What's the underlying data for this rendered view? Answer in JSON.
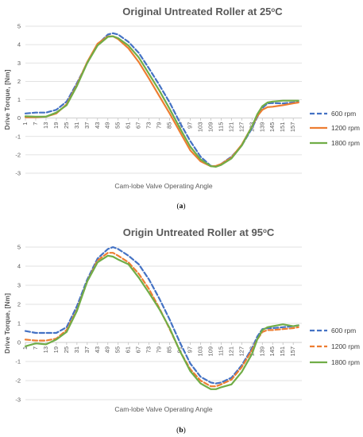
{
  "chart_data": [
    {
      "id": "a",
      "type": "line",
      "title_main": "Original Untreated Roller at 25",
      "title_sup": "o",
      "title_unit": "C",
      "caption_open": "(",
      "caption_letter": "a",
      "caption_close": ")",
      "xlabel": "Cam-lobe Valve Operating Angle",
      "ylabel": "Drive Torque, [Nm]",
      "ylim": [
        -3,
        5
      ],
      "yticks": [
        5,
        4,
        3,
        2,
        1,
        0,
        -1,
        -2,
        -3
      ],
      "x_tick_labels": [
        "1",
        "7",
        "13",
        "19",
        "25",
        "31",
        "37",
        "43",
        "49",
        "55",
        "61",
        "67",
        "73",
        "79",
        "85",
        "91",
        "97",
        "103",
        "109",
        "115",
        "121",
        "127",
        "133",
        "139",
        "145",
        "151",
        "157"
      ],
      "x_range": [
        1,
        162
      ],
      "legend_position": "right",
      "grid": true,
      "series": [
        {
          "name": "600 rpm",
          "color": "#4472c4",
          "dash": true,
          "x": [
            1,
            7,
            13,
            19,
            25,
            31,
            37,
            43,
            49,
            52,
            55,
            61,
            67,
            73,
            79,
            85,
            91,
            97,
            103,
            109,
            112,
            115,
            121,
            127,
            133,
            136,
            139,
            142,
            145,
            151,
            157,
            160
          ],
          "y": [
            0.25,
            0.3,
            0.3,
            0.45,
            0.9,
            1.9,
            3.0,
            4.0,
            4.55,
            4.62,
            4.55,
            4.15,
            3.55,
            2.7,
            1.8,
            0.85,
            -0.25,
            -1.25,
            -2.1,
            -2.6,
            -2.62,
            -2.5,
            -2.1,
            -1.5,
            -0.55,
            0.05,
            0.55,
            0.8,
            0.82,
            0.8,
            0.85,
            0.88
          ]
        },
        {
          "name": "1200 rpm",
          "color": "#ed7d31",
          "dash": false,
          "x": [
            1,
            7,
            13,
            19,
            25,
            31,
            37,
            43,
            49,
            52,
            55,
            61,
            67,
            73,
            79,
            85,
            91,
            97,
            103,
            109,
            112,
            115,
            121,
            127,
            133,
            136,
            139,
            142,
            145,
            151,
            157,
            160
          ],
          "y": [
            0.05,
            0.05,
            0.08,
            0.25,
            0.75,
            1.8,
            3.05,
            4.05,
            4.45,
            4.45,
            4.3,
            3.8,
            3.05,
            2.15,
            1.2,
            0.25,
            -0.75,
            -1.75,
            -2.35,
            -2.62,
            -2.6,
            -2.5,
            -2.15,
            -1.45,
            -0.45,
            0.1,
            0.45,
            0.6,
            0.62,
            0.7,
            0.8,
            0.85
          ]
        },
        {
          "name": "1800 rpm",
          "color": "#70ad47",
          "dash": false,
          "x": [
            1,
            7,
            13,
            19,
            25,
            31,
            37,
            43,
            49,
            52,
            55,
            61,
            67,
            73,
            79,
            85,
            91,
            97,
            103,
            109,
            112,
            115,
            121,
            127,
            133,
            136,
            139,
            142,
            145,
            151,
            157,
            160
          ],
          "y": [
            0.1,
            0.08,
            0.08,
            0.3,
            0.7,
            1.75,
            3.0,
            3.95,
            4.42,
            4.45,
            4.35,
            3.95,
            3.3,
            2.4,
            1.5,
            0.5,
            -0.55,
            -1.55,
            -2.25,
            -2.62,
            -2.65,
            -2.55,
            -2.2,
            -1.5,
            -0.45,
            0.2,
            0.65,
            0.85,
            0.9,
            0.95,
            0.95,
            0.95
          ]
        }
      ]
    },
    {
      "id": "b",
      "type": "line",
      "title_main": "Origin Untreated Roller at 95",
      "title_sup": "o",
      "title_unit": "C",
      "caption_open": "(",
      "caption_letter": "b",
      "caption_close": ")",
      "xlabel": "Cam-lobe Valve Operating Angle",
      "ylabel": "Drive Torque, [Nm]",
      "ylim": [
        -3,
        5
      ],
      "yticks": [
        5,
        4,
        3,
        2,
        1,
        0,
        -1,
        -2,
        -3
      ],
      "x_tick_labels": [
        "1",
        "7",
        "13",
        "19",
        "25",
        "31",
        "37",
        "43",
        "49",
        "55",
        "61",
        "67",
        "73",
        "79",
        "85",
        "91",
        "97",
        "103",
        "109",
        "115",
        "121",
        "127",
        "133",
        "139",
        "145",
        "151",
        "157"
      ],
      "x_range": [
        1,
        162
      ],
      "legend_position": "right",
      "grid": true,
      "series": [
        {
          "name": "600 rpm",
          "color": "#4472c4",
          "dash": true,
          "x": [
            1,
            7,
            13,
            19,
            25,
            31,
            37,
            43,
            49,
            52,
            55,
            61,
            67,
            73,
            79,
            85,
            91,
            97,
            103,
            109,
            112,
            115,
            121,
            127,
            133,
            136,
            139,
            142,
            145,
            151,
            157,
            160
          ],
          "y": [
            0.6,
            0.5,
            0.5,
            0.5,
            0.8,
            1.9,
            3.3,
            4.4,
            4.9,
            5.0,
            4.9,
            4.55,
            4.1,
            3.3,
            2.3,
            1.2,
            0.0,
            -1.1,
            -1.8,
            -2.1,
            -2.15,
            -2.1,
            -1.85,
            -1.2,
            -0.3,
            0.3,
            0.7,
            0.75,
            0.75,
            0.8,
            0.85,
            0.9
          ]
        },
        {
          "name": "1200 rpm",
          "color": "#ed7d31",
          "dash": true,
          "x": [
            1,
            7,
            13,
            19,
            25,
            31,
            37,
            43,
            49,
            52,
            55,
            61,
            67,
            73,
            79,
            85,
            91,
            97,
            103,
            109,
            112,
            115,
            121,
            127,
            133,
            136,
            139,
            142,
            145,
            151,
            157,
            160
          ],
          "y": [
            0.15,
            0.1,
            0.1,
            0.2,
            0.65,
            1.7,
            3.2,
            4.3,
            4.7,
            4.7,
            4.55,
            4.2,
            3.6,
            2.8,
            1.8,
            0.7,
            -0.45,
            -1.4,
            -2.0,
            -2.3,
            -2.3,
            -2.2,
            -1.95,
            -1.3,
            -0.4,
            0.15,
            0.55,
            0.65,
            0.65,
            0.7,
            0.75,
            0.8
          ]
        },
        {
          "name": "1800 rpm",
          "color": "#70ad47",
          "dash": false,
          "x": [
            1,
            7,
            13,
            19,
            25,
            31,
            37,
            43,
            49,
            52,
            55,
            61,
            67,
            73,
            79,
            85,
            91,
            97,
            103,
            109,
            112,
            115,
            121,
            127,
            133,
            136,
            139,
            142,
            145,
            151,
            157,
            160
          ],
          "y": [
            -0.2,
            -0.05,
            -0.1,
            0.15,
            0.55,
            1.65,
            3.2,
            4.2,
            4.55,
            4.5,
            4.35,
            4.1,
            3.4,
            2.6,
            1.75,
            0.75,
            -0.45,
            -1.5,
            -2.15,
            -2.45,
            -2.45,
            -2.35,
            -2.2,
            -1.55,
            -0.6,
            0.15,
            0.65,
            0.8,
            0.85,
            0.95,
            0.85,
            0.9
          ]
        }
      ]
    }
  ]
}
